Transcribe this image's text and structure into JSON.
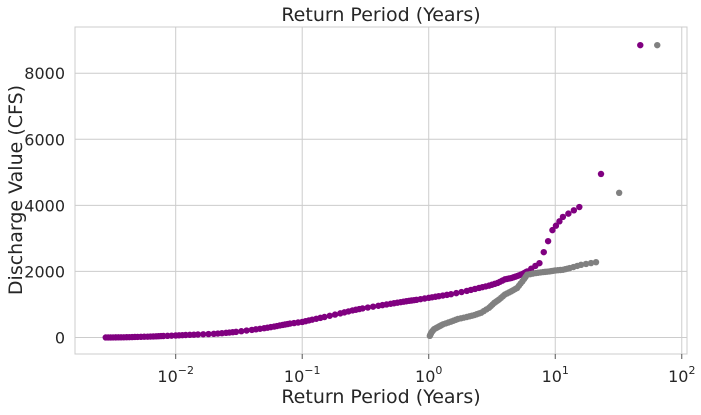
{
  "chart_data": {
    "type": "scatter",
    "title": "Return Period (Years)",
    "xlabel": "Return Period (Years)",
    "ylabel": "Discharge Value (CFS)",
    "xscale": "log",
    "xlim": [
      0.0016,
      110
    ],
    "ylim": [
      -500,
      9400
    ],
    "grid": true,
    "x_ticks": [
      {
        "value": 0.01,
        "base": "10",
        "exp": "−2"
      },
      {
        "value": 0.1,
        "base": "10",
        "exp": "−1"
      },
      {
        "value": 1,
        "base": "10",
        "exp": "0"
      },
      {
        "value": 10,
        "base": "10",
        "exp": "1"
      },
      {
        "value": 100,
        "base": "10",
        "exp": "2"
      }
    ],
    "y_ticks": [
      0,
      2000,
      4000,
      6000,
      8000
    ],
    "series": [
      {
        "color": "#800080",
        "x": [
          0.0028,
          0.0032,
          0.0037,
          0.0043,
          0.005,
          0.006,
          0.007,
          0.008,
          0.01,
          0.012,
          0.015,
          0.02,
          0.025,
          0.03,
          0.04,
          0.05,
          0.06,
          0.07,
          0.08,
          0.1,
          0.12,
          0.15,
          0.2,
          0.25,
          0.3,
          0.4,
          0.5,
          0.6,
          0.7,
          0.8,
          1.0,
          1.2,
          1.5,
          2.0,
          2.5,
          3.0,
          3.5,
          4.0,
          4.5,
          5.0,
          5.5,
          6.0,
          7.5,
          9.5,
          11.5,
          15.5,
          23.0,
          47.0
        ],
        "y": [
          0,
          2,
          5,
          10,
          18,
          25,
          35,
          45,
          60,
          75,
          90,
          110,
          140,
          170,
          230,
          280,
          330,
          380,
          420,
          470,
          540,
          620,
          730,
          820,
          880,
          960,
          1020,
          1070,
          1110,
          1140,
          1200,
          1250,
          1310,
          1410,
          1500,
          1570,
          1650,
          1760,
          1800,
          1860,
          1920,
          2000,
          2250,
          3250,
          3650,
          3950,
          4950,
          8850
        ]
      },
      {
        "color": "#808080",
        "x": [
          1.02,
          1.05,
          1.1,
          1.2,
          1.3,
          1.5,
          1.7,
          2.0,
          2.3,
          2.6,
          3.0,
          3.3,
          3.6,
          4.0,
          4.5,
          5.0,
          5.5,
          6.0,
          7.0,
          8.0,
          9.0,
          10.0,
          11.5,
          13.0,
          16.0,
          21.0,
          32.0,
          64.0
        ],
        "y": [
          50,
          150,
          250,
          330,
          400,
          480,
          560,
          620,
          680,
          750,
          900,
          1050,
          1150,
          1300,
          1400,
          1500,
          1700,
          1900,
          1950,
          1980,
          2000,
          2030,
          2050,
          2100,
          2200,
          2280,
          4380,
          8850
        ]
      }
    ]
  }
}
